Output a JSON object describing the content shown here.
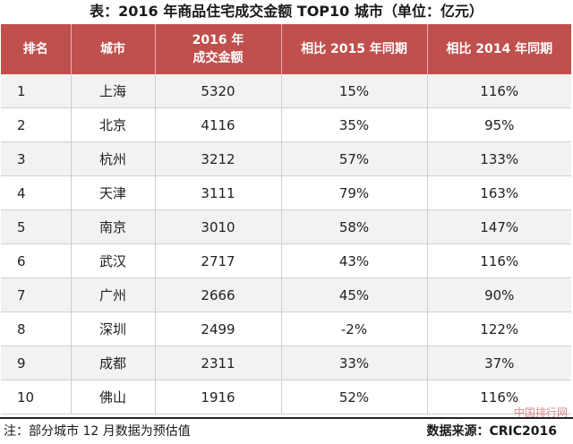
{
  "title": "表：2016 年商品住宅成交金额 TOP10 城市（单位：亿元）",
  "colors": {
    "header_bg": "#c0504d",
    "row_alt_bg": "#f2f2f2",
    "row_bg": "#ffffff",
    "text": "#222222"
  },
  "table": {
    "headers": [
      [
        "排名"
      ],
      [
        "城市"
      ],
      [
        "2016 年",
        "成交金额"
      ],
      [
        "相比 2015 年同期"
      ],
      [
        "相比 2014 年同期"
      ]
    ],
    "rows": [
      [
        "1",
        "上海",
        "5320",
        "15%",
        "116%"
      ],
      [
        "2",
        "北京",
        "4116",
        "35%",
        "95%"
      ],
      [
        "3",
        "杭州",
        "3212",
        "57%",
        "133%"
      ],
      [
        "4",
        "天津",
        "3111",
        "79%",
        "163%"
      ],
      [
        "5",
        "南京",
        "3010",
        "58%",
        "147%"
      ],
      [
        "6",
        "武汉",
        "2717",
        "43%",
        "116%"
      ],
      [
        "7",
        "广州",
        "2666",
        "45%",
        "90%"
      ],
      [
        "8",
        "深圳",
        "2499",
        "-2%",
        "122%"
      ],
      [
        "9",
        "成都",
        "2311",
        "33%",
        "37%"
      ],
      [
        "10",
        "佛山",
        "1916",
        "52%",
        "116%"
      ]
    ]
  },
  "footer": {
    "note": "注：部分城市 12 月数据为预估值",
    "source": "数据来源：CRIC2016"
  },
  "watermark": "中国排行网"
}
